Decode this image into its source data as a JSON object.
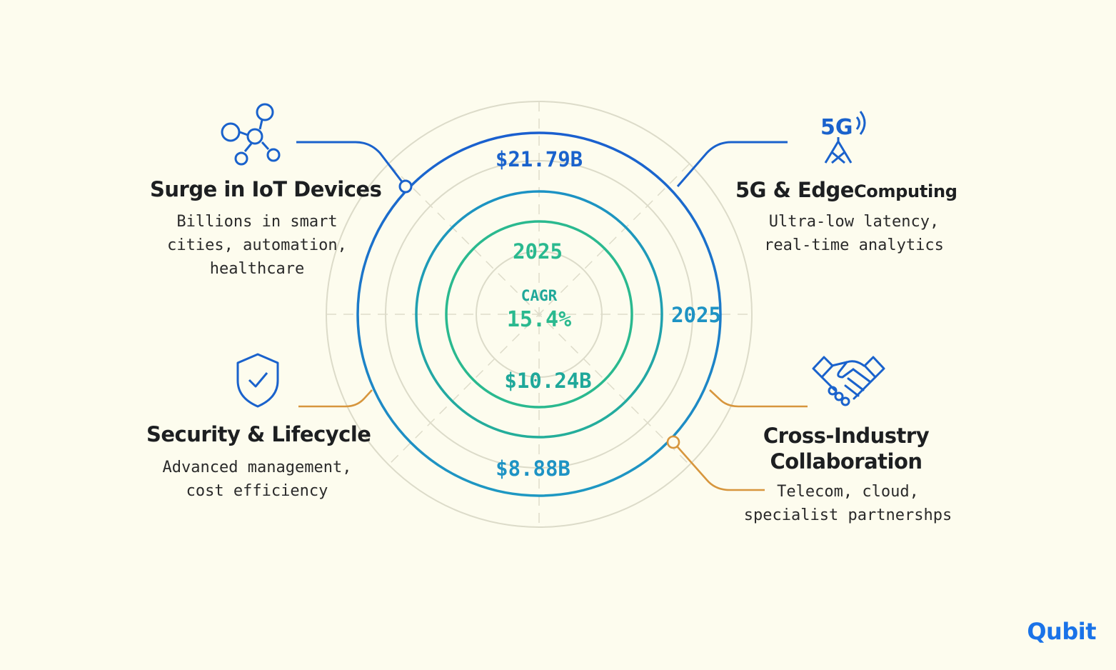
{
  "center": {
    "cagr_label": "CAGR",
    "cagr_value": "15.4%",
    "year_inner": "2025",
    "year_outer": "2025",
    "value_outer_top": "$21.79B",
    "value_middle": "$10.24B",
    "value_outer_bottom": "$8.88B"
  },
  "drivers": [
    {
      "icon": "network-nodes-icon",
      "title": "Surge in IoT Devices",
      "desc": [
        "Billions in smart",
        "cities, automation,",
        "healthcare"
      ]
    },
    {
      "icon": "5g-tower-icon",
      "title_a": "5G & Edge",
      "title_b": "Computing",
      "desc": [
        "Ultra-low latency,",
        "real-time analytics"
      ]
    },
    {
      "icon": "shield-check-icon",
      "title": "Security & Lifecycle",
      "desc": [
        "Advanced management,",
        "cost efficiency"
      ]
    },
    {
      "icon": "handshake-icon",
      "title": [
        "Cross-Industry",
        "Collaboration"
      ],
      "desc": [
        "Telecom, cloud,",
        "specialist partnershps"
      ]
    }
  ],
  "brand": {
    "logo": "Qubit"
  },
  "colors": {
    "background": "#fdfcee",
    "blue": "#1a62cc",
    "teal_blue": "#1e93c4",
    "teal": "#1fa89a",
    "green": "#2ab98f",
    "orange": "#d7963d",
    "guide": "#d9d8c8"
  }
}
